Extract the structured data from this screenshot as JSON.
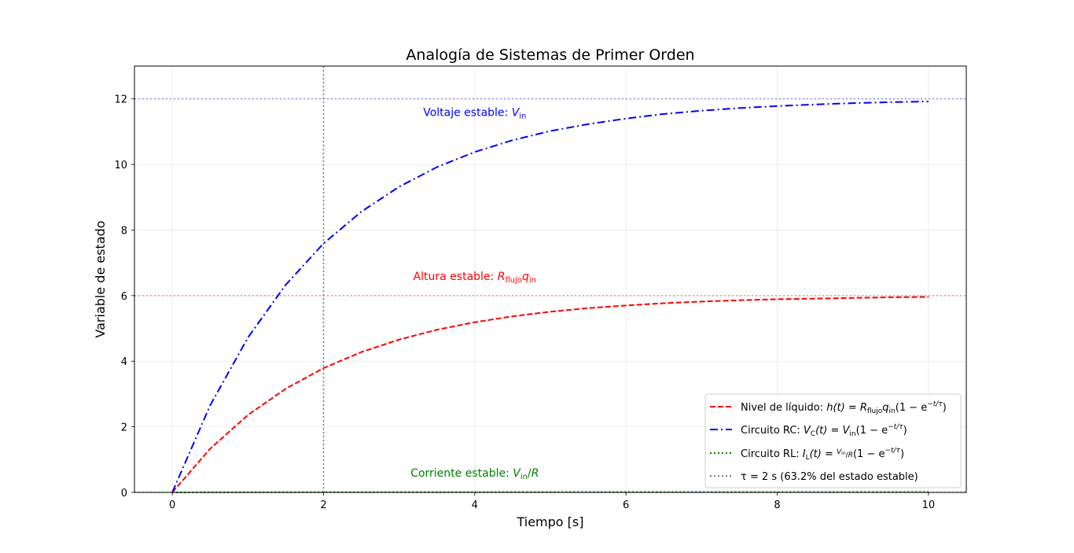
{
  "chart_data": {
    "type": "line",
    "title": "Analogía de Sistemas de Primer Orden",
    "xlabel": "Tiempo [s]",
    "ylabel": "Variable de estado",
    "xlim": [
      -0.5,
      10.5
    ],
    "ylim": [
      0,
      13
    ],
    "xticks": [
      0,
      2,
      4,
      6,
      8,
      10
    ],
    "yticks": [
      0,
      2,
      4,
      6,
      8,
      10,
      12
    ],
    "grid": true,
    "legend_position": "lower-right",
    "tau": 2,
    "series": [
      {
        "name": "Nivel de líquido: h(t) = R_flujo q_in (1 − e^{−t/τ})",
        "legend_parts": {
          "pre": "Nivel de líquido: ",
          "f1": "h(t) = R",
          "sub1": "flujo",
          "f2": "q",
          "sub2": "in",
          "f3": "(1 − e",
          "sup": "−t/τ",
          "f4": ")"
        },
        "color": "#ff0000",
        "style": "dashed",
        "x": [
          0,
          0.5,
          1,
          1.5,
          2,
          2.5,
          3,
          3.5,
          4,
          4.5,
          5,
          5.5,
          6,
          6.5,
          7,
          7.5,
          8,
          8.5,
          9,
          9.5,
          10
        ],
        "y": [
          0,
          1.33,
          2.36,
          3.16,
          3.79,
          4.28,
          4.66,
          4.96,
          5.19,
          5.37,
          5.51,
          5.62,
          5.7,
          5.77,
          5.82,
          5.86,
          5.89,
          5.91,
          5.93,
          5.95,
          5.96
        ]
      },
      {
        "name": "Circuito RC: V_C(t) = V_in (1 − e^{−t/τ})",
        "legend_parts": {
          "pre": "Circuito RC: ",
          "f1": "V",
          "sub1": "C",
          "f2": "(t) = V",
          "sub2": "in",
          "f3": "(1 − e",
          "sup": "−t/τ",
          "f4": ")"
        },
        "color": "#0000ff",
        "style": "dashdot",
        "x": [
          0,
          0.5,
          1,
          1.5,
          2,
          2.5,
          3,
          3.5,
          4,
          4.5,
          5,
          5.5,
          6,
          6.5,
          7,
          7.5,
          8,
          8.5,
          9,
          9.5,
          10
        ],
        "y": [
          0,
          2.65,
          4.72,
          6.33,
          7.59,
          8.56,
          9.32,
          9.92,
          10.38,
          10.74,
          11.02,
          11.23,
          11.4,
          11.54,
          11.64,
          11.72,
          11.78,
          11.83,
          11.87,
          11.9,
          11.92
        ]
      },
      {
        "name": "Circuito RL: I_L(t) = (V_in/R)(1 − e^{−t/τ})",
        "legend_parts": {
          "pre": "Circuito RL: ",
          "f1": "I",
          "sub1": "L",
          "f2": "(t) = ",
          "num": "V",
          "num_sub": "in",
          "den": "R",
          "f3": "(1 − e",
          "sup": "−t/τ",
          "f4": ")"
        },
        "color": "#008000",
        "style": "dotted",
        "x": [
          0,
          0.5,
          1,
          1.5,
          2,
          2.5,
          3,
          3.5,
          4,
          4.5,
          5,
          5.5,
          6,
          6.5,
          7,
          7.5,
          8,
          8.5,
          9,
          9.5,
          10
        ],
        "y": [
          0,
          0.0027,
          0.0047,
          0.0063,
          0.0076,
          0.0086,
          0.0093,
          0.0099,
          0.0104,
          0.0107,
          0.011,
          0.0112,
          0.0114,
          0.0115,
          0.0116,
          0.0117,
          0.0118,
          0.0118,
          0.0119,
          0.0119,
          0.0119
        ]
      }
    ],
    "reference_lines": [
      {
        "orientation": "horizontal",
        "value": 12,
        "color": "#0000ff",
        "style": "dotted"
      },
      {
        "orientation": "horizontal",
        "value": 6,
        "color": "#ff0000",
        "style": "dotted"
      },
      {
        "orientation": "horizontal",
        "value": 0.012,
        "color": "#008000",
        "style": "dotted"
      },
      {
        "orientation": "vertical",
        "value": 2,
        "color": "#808080",
        "style": "dotted",
        "legend": "τ = 2 s (63.2% del estado estable)"
      }
    ],
    "annotations": [
      {
        "key": "voltaje",
        "x": 4,
        "y": 11.6,
        "color": "#0000ff",
        "pre": "Voltaje estable: ",
        "m1": "V",
        "s1": "in",
        "m2": "",
        "s2": "",
        "post": ""
      },
      {
        "key": "altura",
        "x": 4,
        "y": 6.6,
        "color": "#ff0000",
        "pre": "Altura estable: ",
        "m1": "R",
        "s1": "flujo",
        "m2": "q",
        "s2": "in",
        "post": ""
      },
      {
        "key": "corriente",
        "x": 4,
        "y": 0.6,
        "color": "#008000",
        "pre": "Corriente estable: ",
        "m1": "V",
        "s1": "in",
        "m2": "",
        "s2": "",
        "post": "/R"
      }
    ],
    "legend_entries": [
      {
        "label_series": 0
      },
      {
        "label_series": 1
      },
      {
        "label_series": 2
      },
      {
        "text": "τ = 2 s (63.2% del estado estable)",
        "color": "#808080",
        "style": "dotted"
      }
    ]
  }
}
